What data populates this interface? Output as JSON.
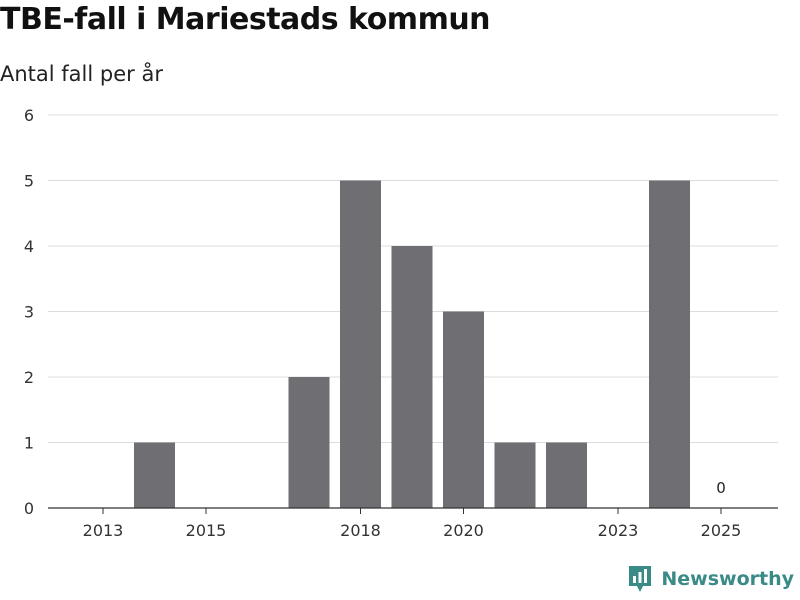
{
  "chart_data": {
    "type": "bar",
    "title": "TBE-fall i Mariestads kommun",
    "subtitle": "Antal fall per år",
    "categories": [
      "2013",
      "2014",
      "2015",
      "2016",
      "2017",
      "2018",
      "2019",
      "2020",
      "2021",
      "2022",
      "2023",
      "2024",
      "2025"
    ],
    "x_tick_labels": [
      "2013",
      "2015",
      "2018",
      "2020",
      "2023",
      "2025"
    ],
    "values": [
      0,
      1,
      0,
      0,
      2,
      5,
      4,
      3,
      1,
      1,
      0,
      5,
      0
    ],
    "labeled_bars": [
      {
        "category": "2025",
        "label": "0"
      }
    ],
    "ylim": [
      0,
      6
    ],
    "yticks": [
      "0",
      "1",
      "2",
      "3",
      "4",
      "5",
      "6"
    ],
    "xlabel": "",
    "ylabel": "",
    "grid": true,
    "bar_color": "#6e6e73"
  },
  "brand": {
    "name": "Newsworthy",
    "icon": "newsworthy-logo-icon",
    "color": "#3a8a88"
  }
}
